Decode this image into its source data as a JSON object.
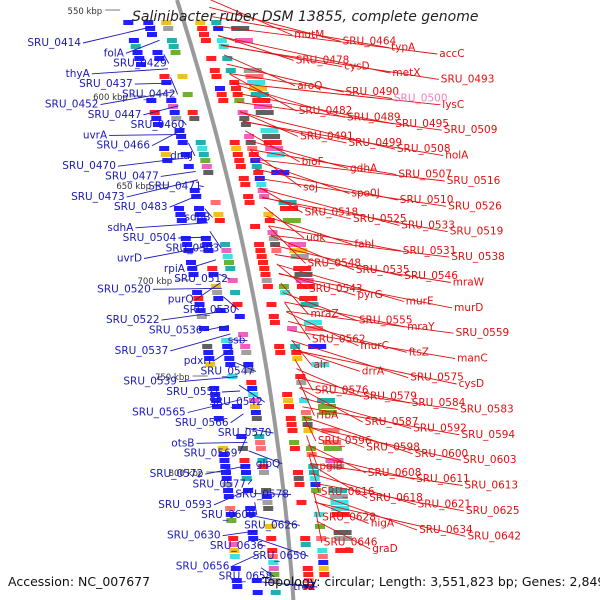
{
  "title": "Salinibacter ruber DSM 13855, complete genome",
  "footer": {
    "accession": "Accession: NC_007677",
    "summary": "Topology: circular; Length: 3,551,823 bp; Genes: 2,849"
  },
  "colors": {
    "left_labels": "#1a1ab4",
    "right_labels": "#e01010",
    "backbone": "#9a9a9a",
    "tick_label": "#333333",
    "tick_mark": "#2e8b2e",
    "highlight_label": "#f080c0"
  },
  "ticks": [
    "550 kbp",
    "600 kbp",
    "650 kbp",
    "700 kbp",
    "750 kbp",
    "800 kbp"
  ],
  "left_genes": [
    "SRU_0414",
    "folA",
    "SRU_0429",
    "thyA",
    "SRU_0437",
    "SRU_0442",
    "SRU_0452",
    "SRU_0447",
    "SRU_0460",
    "uvrA",
    "SRU_0466",
    "dnaJ",
    "SRU_0470",
    "SRU_0477",
    "SRU_0471",
    "SRU_0473",
    "SRU_0483",
    "sdhB",
    "sdhA",
    "SRU_0504",
    "SRU_0503",
    "uvrD",
    "rpiA",
    "SRU_0512",
    "SRU_0520",
    "purQ",
    "SRU_0530",
    "SRU_0522",
    "SRU_0536",
    "ssb",
    "SRU_0537",
    "pdxH",
    "SRU_0547",
    "SRU_0539",
    "SRU_0551",
    "SRU_0542",
    "SRU_0565",
    "SRU_0566",
    "SRU_0570",
    "otsB",
    "SRU_0569",
    "glpQ",
    "SRU_0572",
    "SRU_0577",
    "SRU_0578",
    "SRU_0593",
    "SRU_0609",
    "SRU_0626",
    "SRU_0630",
    "SRU_0636",
    "SRU_0650",
    "SRU_0656",
    "SRU_0658",
    "treZ"
  ],
  "right_genes": [
    "mutM",
    "SRU_0464",
    "typA",
    "accC",
    "SRU_0478",
    "cysD",
    "metX",
    "SRU_0493",
    "aroQ",
    "SRU_0490",
    "SRU_0500",
    "lysC",
    "SRU_0482",
    "SRU_0489",
    "SRU_0495",
    "SRU_0509",
    "SRU_0491",
    "SRU_0499",
    "SRU_0508",
    "holA",
    "bioF",
    "gdhA",
    "SRU_0507",
    "SRU_0516",
    "soj",
    "spo0J",
    "SRU_0510",
    "SRU_0526",
    "SRU_0518",
    "SRU_0525",
    "SRU_0533",
    "SRU_0519",
    "udk",
    "fabI",
    "SRU_0531",
    "SRU_0538",
    "SRU_0548",
    "SRU_0535",
    "SRU_0546",
    "mraW",
    "SRU_0543",
    "pyrG",
    "murE",
    "murD",
    "mraZ",
    "SRU_0555",
    "mraY",
    "SRU_0559",
    "SRU_0562",
    "murC",
    "ftsZ",
    "manC",
    "alr",
    "drrA",
    "SRU_0575",
    "cysD",
    "SRU_0576",
    "SRU_0579",
    "SRU_0584",
    "SRU_0583",
    "rfbA",
    "SRU_0587",
    "SRU_0592",
    "SRU_0594",
    "SRU_0596",
    "SRU_0598",
    "SRU_0600",
    "SRU_0603",
    "pglB",
    "SRU_0608",
    "SRU_0611",
    "SRU_0613",
    "SRU_0616",
    "SRU_0618",
    "SRU_0621",
    "SRU_0625",
    "SRU_0628",
    "higA",
    "SRU_0634",
    "SRU_0642",
    "SRU_0646",
    "graD"
  ]
}
